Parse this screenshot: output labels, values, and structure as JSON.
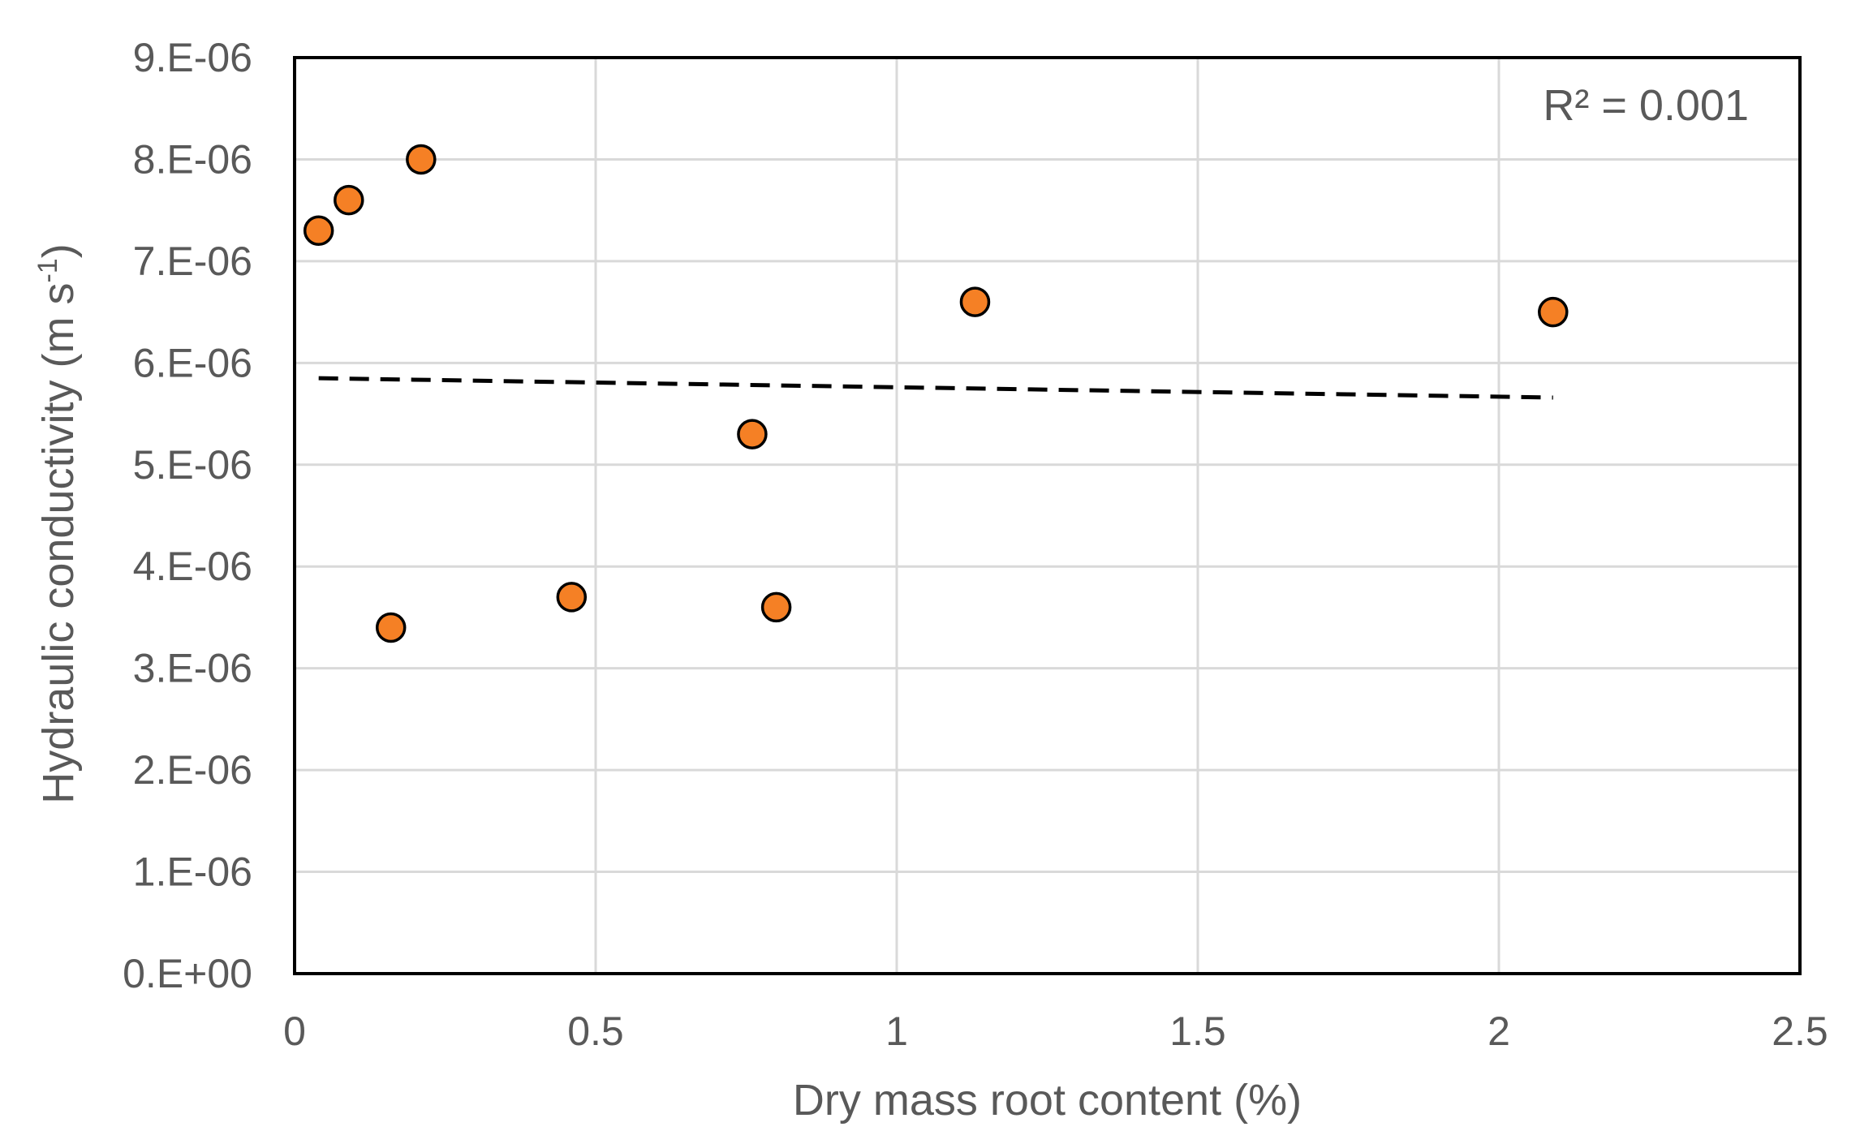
{
  "chart_data": {
    "type": "scatter",
    "xlabel": "Dry mass root content (%)",
    "ylabel_main": "Hydraulic conductivity (m s",
    "ylabel_sup": "-1",
    "ylabel_close": ")",
    "xlim": [
      0,
      2.5
    ],
    "ylim": [
      0,
      9e-06
    ],
    "x_ticks": [
      {
        "value": 0,
        "label": "0"
      },
      {
        "value": 0.5,
        "label": "0.5"
      },
      {
        "value": 1,
        "label": "1"
      },
      {
        "value": 1.5,
        "label": "1.5"
      },
      {
        "value": 2,
        "label": "2"
      },
      {
        "value": 2.5,
        "label": "2.5"
      }
    ],
    "y_ticks": [
      {
        "value": 0,
        "label": "0.E+00"
      },
      {
        "value": 1e-06,
        "label": "1.E-06"
      },
      {
        "value": 2e-06,
        "label": "2.E-06"
      },
      {
        "value": 3e-06,
        "label": "3.E-06"
      },
      {
        "value": 4e-06,
        "label": "4.E-06"
      },
      {
        "value": 5e-06,
        "label": "5.E-06"
      },
      {
        "value": 6e-06,
        "label": "6.E-06"
      },
      {
        "value": 7e-06,
        "label": "7.E-06"
      },
      {
        "value": 8e-06,
        "label": "8.E-06"
      },
      {
        "value": 9e-06,
        "label": "9.E-06"
      }
    ],
    "grid": true,
    "points": [
      {
        "x": 0.04,
        "y": 7.3e-06
      },
      {
        "x": 0.09,
        "y": 7.6e-06
      },
      {
        "x": 0.21,
        "y": 8e-06
      },
      {
        "x": 0.16,
        "y": 3.4e-06
      },
      {
        "x": 0.46,
        "y": 3.7e-06
      },
      {
        "x": 0.76,
        "y": 5.3e-06
      },
      {
        "x": 0.8,
        "y": 3.6e-06
      },
      {
        "x": 1.13,
        "y": 6.6e-06
      },
      {
        "x": 2.09,
        "y": 6.5e-06
      }
    ],
    "trendline": {
      "type": "linear",
      "style": "dashed",
      "x": [
        0.04,
        2.09
      ],
      "y": [
        5.85e-06,
        5.66e-06
      ]
    },
    "annotation": "R² = 0.001",
    "marker_color": "#f58025",
    "marker_edge_color": "#000000",
    "trendline_color": "#000000"
  }
}
